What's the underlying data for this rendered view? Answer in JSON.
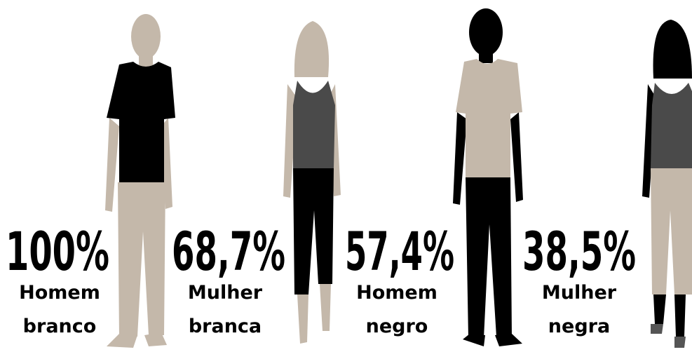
{
  "items": [
    {
      "percent": "100%",
      "line1": "Homem",
      "line2": "branco"
    },
    {
      "percent": "68,7%",
      "line1": "Mulher",
      "line2": "branca"
    },
    {
      "percent": "57,4%",
      "line1": "Homem",
      "line2": "negro"
    },
    {
      "percent": "38,5%",
      "line1": "Mulher",
      "line2": "negra"
    }
  ]
}
